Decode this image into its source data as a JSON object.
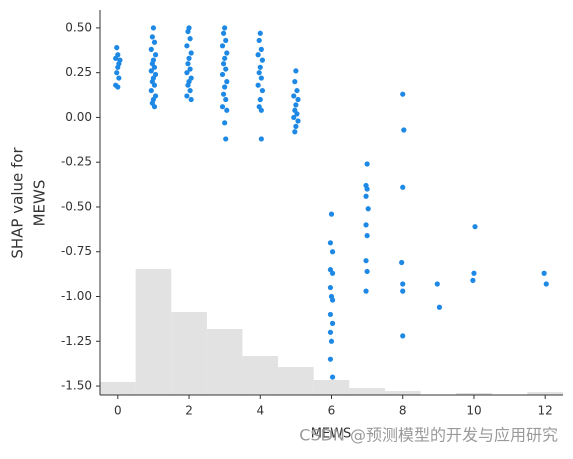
{
  "chart_data": {
    "type": "scatter",
    "xlabel": "MEWS",
    "ylabel": [
      "SHAP value for",
      "MEWS"
    ],
    "watermark": "CSDN @预测模型的开发与应用研究",
    "xlim": [
      -0.5,
      12.5
    ],
    "xticks": [
      0,
      2,
      4,
      6,
      8,
      10,
      12
    ],
    "ylim": [
      -1.55,
      0.6
    ],
    "yticks": [
      {
        "value": 0.5,
        "label": "0.50"
      },
      {
        "value": 0.25,
        "label": "0.25"
      },
      {
        "value": 0,
        "label": "0.00"
      },
      {
        "value": -0.25,
        "label": "-0.25"
      },
      {
        "value": -0.5,
        "label": "-0.50"
      },
      {
        "value": -0.75,
        "label": "-0.75"
      },
      {
        "value": -1,
        "label": "-1.00"
      },
      {
        "value": -1.25,
        "label": "-1.25"
      },
      {
        "value": -1.5,
        "label": "-1.50"
      }
    ],
    "histogram": {
      "color": "#e2e2e2",
      "bins": [
        -0.5,
        0.5,
        1.5,
        2.5,
        3.5,
        4.5,
        5.5,
        6.5,
        7.5,
        8.5,
        9.5,
        10.5,
        11.5,
        12.5
      ],
      "counts": [
        13,
        126,
        83,
        66,
        39,
        28,
        15,
        7,
        4,
        0,
        2,
        0,
        3
      ],
      "y2lim": [
        0,
        385
      ]
    },
    "series": [
      {
        "color": "#1e88e5",
        "x": [
          -0.03,
          0,
          -0.06,
          0.03,
          0,
          -0.03,
          0.03,
          -0.06,
          0,
          0.06,
          1.0,
          0.97,
          1.03,
          0.94,
          1.06,
          1.0,
          0.97,
          1.03,
          0.94,
          1.06,
          1.0,
          0.97,
          1.03,
          0.94,
          1.06,
          1.0,
          0.97,
          1.03,
          2.0,
          1.97,
          2.03,
          1.94,
          2.06,
          2.0,
          1.97,
          2.03,
          1.94,
          2.06,
          2.0,
          1.97,
          2.03,
          1.94,
          2.06,
          3.0,
          2.97,
          3.03,
          2.94,
          3.06,
          3.0,
          2.97,
          3.03,
          2.94,
          3.06,
          3.0,
          2.97,
          3.03,
          2.94,
          3.06,
          3.0,
          3.03,
          4.0,
          3.97,
          4.03,
          3.94,
          4.06,
          4.0,
          3.97,
          4.03,
          3.94,
          4.06,
          4.0,
          3.97,
          4.03,
          4.03,
          5.0,
          4.97,
          5.03,
          4.94,
          5.06,
          5.0,
          4.97,
          5.03,
          4.94,
          5.06,
          5.0,
          4.97,
          6.0,
          5.97,
          6.03,
          5.97,
          6.03,
          5.97,
          6.0,
          6.03,
          5.97,
          6.03,
          5.97,
          6.0,
          5.97,
          6.03,
          7.0,
          6.97,
          7.0,
          6.97,
          7.03,
          6.97,
          7.0,
          6.97,
          7.0,
          6.97,
          8.0,
          8.03,
          8.0,
          7.97,
          8.0,
          8.0,
          8.0,
          8.97,
          9.03,
          10.03,
          10.0,
          9.97,
          11.97,
          12.03
        ],
        "values": [
          0.39,
          0.35,
          0.33,
          0.3,
          0.28,
          0.25,
          0.22,
          0.18,
          0.17,
          0.32,
          0.5,
          0.45,
          0.42,
          0.38,
          0.35,
          0.32,
          0.3,
          0.28,
          0.26,
          0.24,
          0.22,
          0.2,
          0.18,
          0.15,
          0.12,
          0.1,
          0.08,
          0.06,
          0.5,
          0.48,
          0.44,
          0.4,
          0.36,
          0.33,
          0.3,
          0.27,
          0.25,
          0.22,
          0.2,
          0.18,
          0.15,
          0.12,
          0.1,
          0.5,
          0.47,
          0.43,
          0.4,
          0.36,
          0.33,
          0.3,
          0.27,
          0.24,
          0.2,
          0.17,
          0.13,
          0.1,
          0.06,
          0.04,
          -0.03,
          -0.12,
          0.47,
          0.43,
          0.38,
          0.35,
          0.32,
          0.28,
          0.25,
          0.22,
          0.18,
          0.15,
          0.1,
          0.06,
          0.04,
          -0.12,
          0.26,
          0.2,
          0.15,
          0.12,
          0.1,
          0.07,
          0.04,
          0.02,
          0,
          -0.02,
          -0.05,
          -0.08,
          -0.54,
          -0.7,
          -0.75,
          -0.85,
          -0.87,
          -0.95,
          -1.0,
          -1.02,
          -1.1,
          -1.15,
          -1.2,
          -1.25,
          -1.35,
          -1.45,
          -0.26,
          -0.38,
          -0.4,
          -0.44,
          -0.51,
          -0.6,
          -0.66,
          -0.8,
          -0.86,
          -0.97,
          0.13,
          -0.07,
          -0.39,
          -0.81,
          -0.93,
          -0.97,
          -1.22,
          -0.93,
          -1.06,
          -0.61,
          -0.87,
          -0.91,
          -0.87,
          -0.93
        ]
      }
    ]
  }
}
